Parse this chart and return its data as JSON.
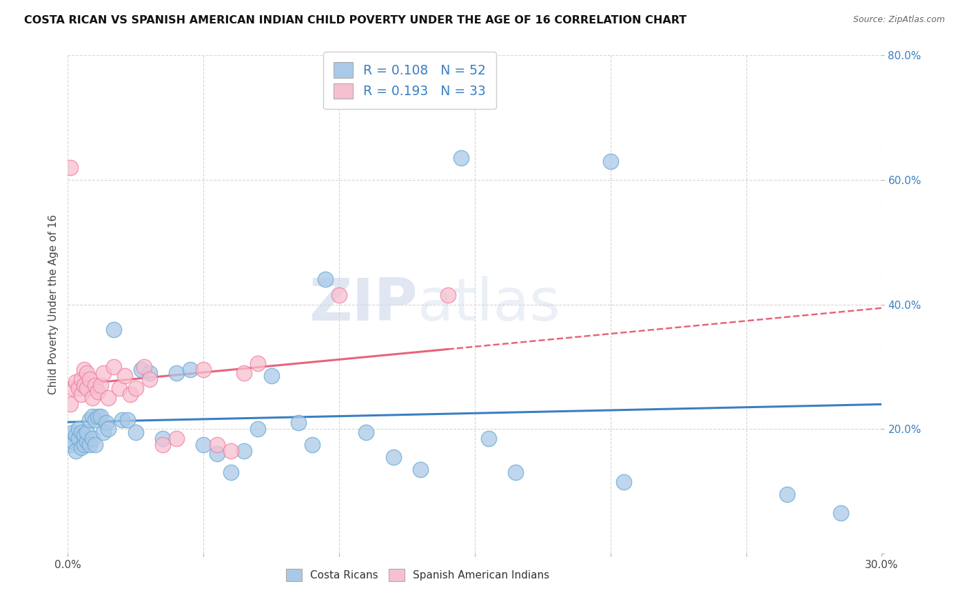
{
  "title": "COSTA RICAN VS SPANISH AMERICAN INDIAN CHILD POVERTY UNDER THE AGE OF 16 CORRELATION CHART",
  "source": "Source: ZipAtlas.com",
  "ylabel": "Child Poverty Under the Age of 16",
  "xlim": [
    0.0,
    0.3
  ],
  "ylim": [
    0.0,
    0.8
  ],
  "blue_color": "#aac9e8",
  "blue_edge": "#6aaad4",
  "pink_color": "#f7c0d0",
  "pink_edge": "#f080a0",
  "blue_line_color": "#3a7fc1",
  "pink_line_color": "#e8637a",
  "watermark_zip": "ZIP",
  "watermark_atlas": "atlas",
  "legend_text_color": "#3a7fc1",
  "blue_scatter_x": [
    0.001,
    0.002,
    0.002,
    0.003,
    0.003,
    0.004,
    0.004,
    0.005,
    0.005,
    0.006,
    0.006,
    0.007,
    0.007,
    0.008,
    0.008,
    0.009,
    0.009,
    0.01,
    0.01,
    0.011,
    0.012,
    0.013,
    0.014,
    0.015,
    0.017,
    0.02,
    0.022,
    0.025,
    0.027,
    0.03,
    0.035,
    0.04,
    0.045,
    0.05,
    0.055,
    0.06,
    0.065,
    0.07,
    0.075,
    0.085,
    0.09,
    0.095,
    0.11,
    0.12,
    0.13,
    0.145,
    0.155,
    0.165,
    0.2,
    0.205,
    0.265,
    0.285
  ],
  "blue_scatter_y": [
    0.175,
    0.18,
    0.195,
    0.165,
    0.19,
    0.185,
    0.2,
    0.17,
    0.195,
    0.175,
    0.19,
    0.18,
    0.195,
    0.175,
    0.215,
    0.185,
    0.22,
    0.175,
    0.215,
    0.22,
    0.22,
    0.195,
    0.21,
    0.2,
    0.36,
    0.215,
    0.215,
    0.195,
    0.295,
    0.29,
    0.185,
    0.29,
    0.295,
    0.175,
    0.16,
    0.13,
    0.165,
    0.2,
    0.285,
    0.21,
    0.175,
    0.44,
    0.195,
    0.155,
    0.135,
    0.635,
    0.185,
    0.13,
    0.63,
    0.115,
    0.095,
    0.065
  ],
  "pink_scatter_x": [
    0.001,
    0.002,
    0.003,
    0.004,
    0.005,
    0.005,
    0.006,
    0.006,
    0.007,
    0.007,
    0.008,
    0.009,
    0.01,
    0.011,
    0.012,
    0.013,
    0.015,
    0.017,
    0.019,
    0.021,
    0.023,
    0.025,
    0.028,
    0.03,
    0.035,
    0.04,
    0.05,
    0.055,
    0.06,
    0.065,
    0.07,
    0.1,
    0.14
  ],
  "pink_scatter_y": [
    0.24,
    0.265,
    0.275,
    0.265,
    0.255,
    0.28,
    0.27,
    0.295,
    0.265,
    0.29,
    0.28,
    0.25,
    0.27,
    0.26,
    0.27,
    0.29,
    0.25,
    0.3,
    0.265,
    0.285,
    0.255,
    0.265,
    0.3,
    0.28,
    0.175,
    0.185,
    0.295,
    0.175,
    0.165,
    0.29,
    0.305,
    0.415,
    0.415
  ],
  "pink_outlier_x": [
    0.001
  ],
  "pink_outlier_y": [
    0.62
  ]
}
